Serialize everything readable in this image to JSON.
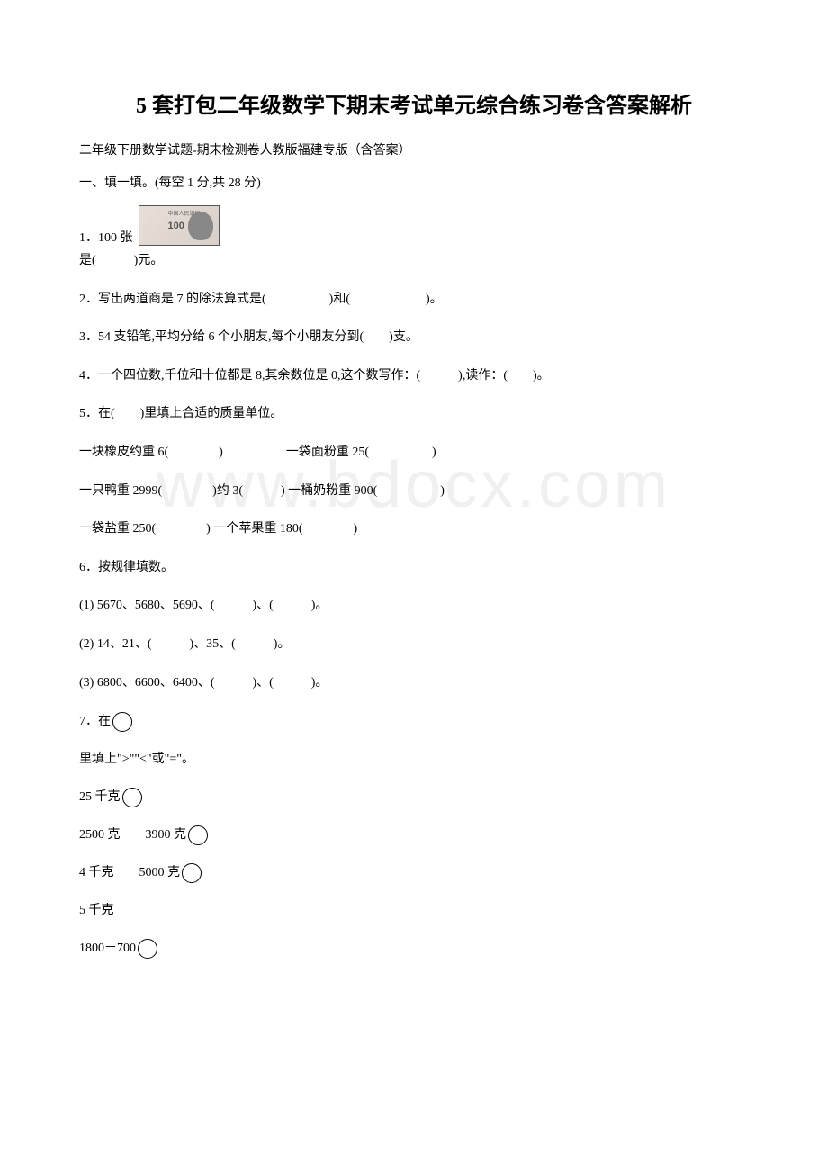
{
  "watermark": "www.bdocx.com",
  "title": "5 套打包二年级数学下期末考试单元综合练习卷含答案解析",
  "subtitle": "二年级下册数学试题-期末检测卷人教版福建专版（含答案）",
  "section1_header": "一、填一填。(每空 1 分,共 28 分)",
  "q1_prefix": "1．100 张",
  "q1_line2": "是(　　　)元。",
  "q2": "2．写出两道商是 7 的除法算式是(　　　　　)和(　　　　　　)。",
  "q3": "3．54 支铅笔,平均分给 6 个小朋友,每个小朋友分到(　　)支。",
  "q4": "4．一个四位数,千位和十位都是 8,其余数位是 0,这个数写作：(　　　),读作：(　　)。",
  "q5": "5．在(　　)里填上合适的质量单位。",
  "q5_line1": "一块橡皮约重 6(　　　　)　　　　　一袋面粉重 25(　　　　　)",
  "q5_line2": "一只鸭重 2999(　　　　)约 3(　　　) 一桶奶粉重 900(　　　　　)",
  "q5_line3": "一袋盐重 250(　　　　) 一个苹果重 180(　　　　)",
  "q6": "6．按规律填数。",
  "q6_1": "(1) 5670、5680、5690、(　　　)、(　　　)。",
  "q6_2": "(2) 14、21、(　　　)、35、(　　　)。",
  "q6_3": "(3) 6800、6600、6400、(　　　)、(　　　)。",
  "q7_prefix": "7．在",
  "q7_line2": "里填上\">\"\"<\"或\"=\"。",
  "q7_c1": "25 千克",
  "q7_c2a": "2500 克",
  "q7_c2b": "3900 克",
  "q7_c3a": " 4 千克",
  "q7_c3b": "5000 克",
  "q7_c4": " 5 千克",
  "q7_c5": "1800－700"
}
